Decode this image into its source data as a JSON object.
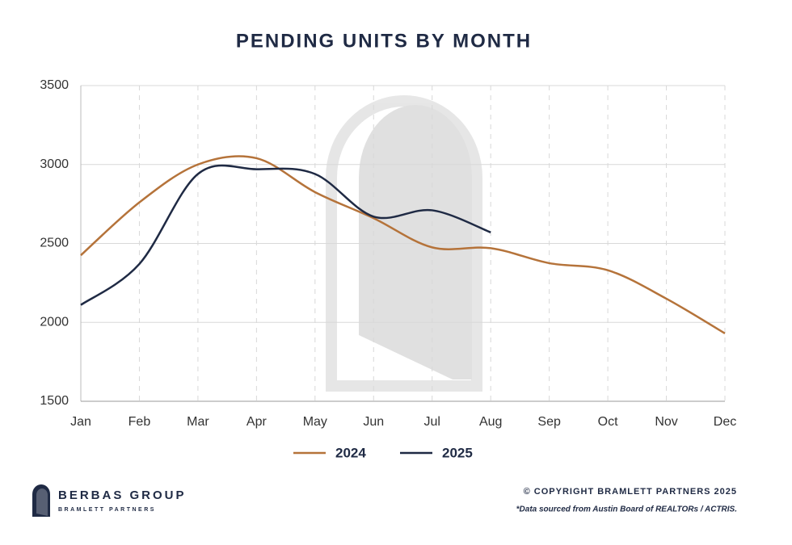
{
  "chart_data": {
    "type": "line",
    "title": "PENDING UNITS BY MONTH",
    "categories": [
      "Jan",
      "Feb",
      "Mar",
      "Apr",
      "May",
      "Jun",
      "Jul",
      "Aug",
      "Sep",
      "Oct",
      "Nov",
      "Dec"
    ],
    "series": [
      {
        "name": "2024",
        "color": "#b5733a",
        "values": [
          2425,
          2760,
          3000,
          3040,
          2825,
          2660,
          2475,
          2470,
          2375,
          2330,
          2150,
          1930
        ]
      },
      {
        "name": "2025",
        "color": "#1f2a44",
        "values": [
          2110,
          2370,
          2940,
          2970,
          2940,
          2670,
          2710,
          2570,
          null,
          null,
          null,
          null
        ]
      }
    ],
    "ylim": [
      1500,
      3500
    ],
    "yticks": [
      1500,
      2000,
      2500,
      3000,
      3500
    ],
    "grid": true,
    "legend": "bottom"
  },
  "footer": {
    "logo_name": "BERBAS GROUP",
    "logo_sub": "BRAMLETT PARTNERS",
    "copyright": "© COPYRIGHT BRAMLETT PARTNERS 2025",
    "source": "*Data sourced from Austin Board of REALTORs / ACTRIS."
  }
}
